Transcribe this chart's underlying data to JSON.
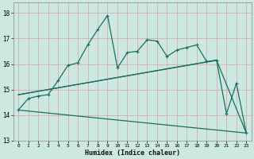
{
  "title": "",
  "xlabel": "Humidex (Indice chaleur)",
  "ylabel": "",
  "bg_color": "#cce8e0",
  "grid_color": "#aacfc8",
  "line_color": "#1a7060",
  "xlim": [
    -0.5,
    23.5
  ],
  "ylim": [
    13,
    18.4
  ],
  "yticks": [
    13,
    14,
    15,
    16,
    17,
    18
  ],
  "xticks": [
    0,
    1,
    2,
    3,
    4,
    5,
    6,
    7,
    8,
    9,
    10,
    11,
    12,
    13,
    14,
    15,
    16,
    17,
    18,
    19,
    20,
    21,
    22,
    23
  ],
  "series1_x": [
    0,
    1,
    2,
    3,
    4,
    5,
    6,
    7,
    8,
    9,
    10,
    11,
    12,
    13,
    14,
    15,
    16,
    17,
    18,
    19,
    20,
    21,
    22,
    23
  ],
  "series1_y": [
    14.2,
    14.65,
    14.75,
    14.8,
    15.35,
    15.95,
    16.05,
    16.75,
    17.35,
    17.9,
    15.85,
    16.45,
    16.5,
    16.95,
    16.9,
    16.3,
    16.55,
    16.65,
    16.75,
    16.1,
    16.15,
    14.05,
    15.25,
    13.3
  ],
  "line2_x": [
    0,
    23
  ],
  "line2_y": [
    14.2,
    13.3
  ],
  "line3_x": [
    0,
    20,
    23
  ],
  "line3_y": [
    14.8,
    16.15,
    13.3
  ],
  "line4_x": [
    0,
    20
  ],
  "line4_y": [
    14.8,
    16.15
  ]
}
